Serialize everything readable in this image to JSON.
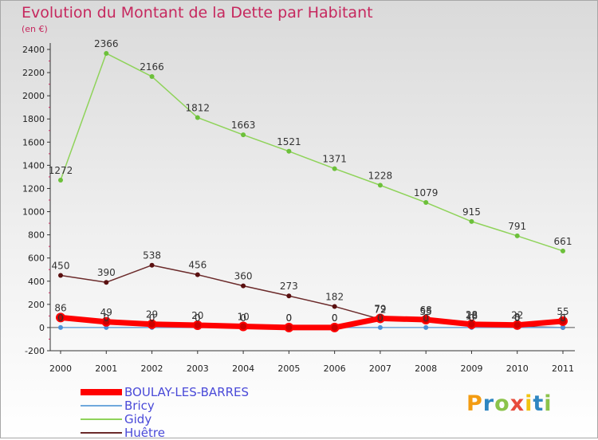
{
  "title": "Evolution du Montant de la Dette par Habitant",
  "unit": "(en €)",
  "logo": {
    "text": "Proxiti",
    "colors": [
      "#f39c12",
      "#2e86c1",
      "#8bc34a",
      "#e74c3c",
      "#f1c40f",
      "#2e86c1",
      "#8bc34a"
    ]
  },
  "chart_data": {
    "type": "line",
    "x": [
      "2000",
      "2001",
      "2002",
      "2003",
      "2004",
      "2005",
      "2006",
      "2007",
      "2008",
      "2009",
      "2010",
      "2011"
    ],
    "yticks": [
      "-200",
      "0",
      "200",
      "400",
      "600",
      "800",
      "1000",
      "1200",
      "1400",
      "1600",
      "1800",
      "2000",
      "2200",
      "2400"
    ],
    "ylim": [
      -200,
      2400
    ],
    "grid": false,
    "legend_position": "bottom-left",
    "series": [
      {
        "name": "BOULAY-LES-BARRES",
        "color": "#ff0000",
        "marker": "#cc0000",
        "values": [
          86,
          49,
          29,
          20,
          10,
          0,
          0,
          79,
          68,
          28,
          22,
          55
        ],
        "labels": [
          "86",
          "49",
          "29",
          "20",
          "10",
          "0",
          "0",
          "79",
          "68",
          "28",
          "22",
          "55"
        ]
      },
      {
        "name": "Bricy",
        "color": "#6fa8dc",
        "marker": "#4a90d9",
        "values": [
          0,
          0,
          0,
          0,
          0,
          0,
          0,
          0,
          0,
          0,
          0,
          0
        ],
        "labels": [
          "0",
          "0",
          "0",
          "0",
          "0",
          "0",
          "0",
          "0",
          "0",
          "0",
          "0",
          "0"
        ]
      },
      {
        "name": "Gidy",
        "color": "#8fd35a",
        "marker": "#6cc03a",
        "values": [
          1272,
          2366,
          2166,
          1812,
          1663,
          1521,
          1371,
          1228,
          1079,
          915,
          791,
          661
        ],
        "labels": [
          "1272",
          "2366",
          "2166",
          "1812",
          "1663",
          "1521",
          "1371",
          "1228",
          "1079",
          "915",
          "791",
          "661"
        ]
      },
      {
        "name": "Huêtre",
        "color": "#6b2a2a",
        "marker": "#5a1010",
        "values": [
          450,
          390,
          538,
          456,
          360,
          273,
          182,
          72,
          55,
          18,
          8,
          0
        ],
        "labels": [
          "450",
          "390",
          "538",
          "456",
          "360",
          "273",
          "182",
          "72",
          "55",
          "18",
          "8",
          "0"
        ]
      }
    ]
  }
}
